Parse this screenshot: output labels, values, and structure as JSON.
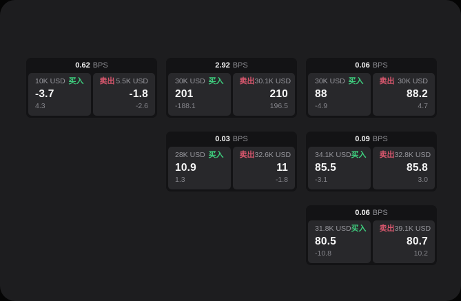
{
  "page": {
    "backdrop_color": "#050505",
    "surface_color": "#1d1d1f",
    "card_color": "#131315",
    "pane_color": "#28282b"
  },
  "labels": {
    "buy": "买入",
    "sell": "卖出",
    "bps_unit": "BPS"
  },
  "colors": {
    "buy_green": "#3ecf7e",
    "sell_red": "#d5566c"
  },
  "cards": [
    {
      "grid": "r1c1",
      "bps": "0.62",
      "buy": {
        "amount": "10K USD",
        "main": "-3.7",
        "sub": "4.3"
      },
      "sell": {
        "amount": "5.5K USD",
        "main": "-1.8",
        "sub": "-2.6"
      }
    },
    {
      "grid": "r1c2",
      "bps": "2.92",
      "buy": {
        "amount": "30K USD",
        "main": "201",
        "sub": "-188.1"
      },
      "sell": {
        "amount": "30.1K USD",
        "main": "210",
        "sub": "196.5"
      }
    },
    {
      "grid": "r1c3",
      "bps": "0.06",
      "buy": {
        "amount": "30K USD",
        "main": "88",
        "sub": "-4.9"
      },
      "sell": {
        "amount": "30K USD",
        "main": "88.2",
        "sub": "4.7"
      }
    },
    {
      "grid": "r2c2",
      "bps": "0.03",
      "buy": {
        "amount": "28K USD",
        "main": "10.9",
        "sub": "1.3"
      },
      "sell": {
        "amount": "32.6K USD",
        "main": "11",
        "sub": "-1.8"
      }
    },
    {
      "grid": "r2c3",
      "bps": "0.09",
      "buy": {
        "amount": "34.1K USD",
        "main": "85.5",
        "sub": "-3.1"
      },
      "sell": {
        "amount": "32.8K USD",
        "main": "85.8",
        "sub": "3.0"
      }
    },
    {
      "grid": "r3c3",
      "bps": "0.06",
      "buy": {
        "amount": "31.8K USD",
        "main": "80.5",
        "sub": "-10.8"
      },
      "sell": {
        "amount": "39.1K USD",
        "main": "80.7",
        "sub": "10.2"
      }
    }
  ]
}
